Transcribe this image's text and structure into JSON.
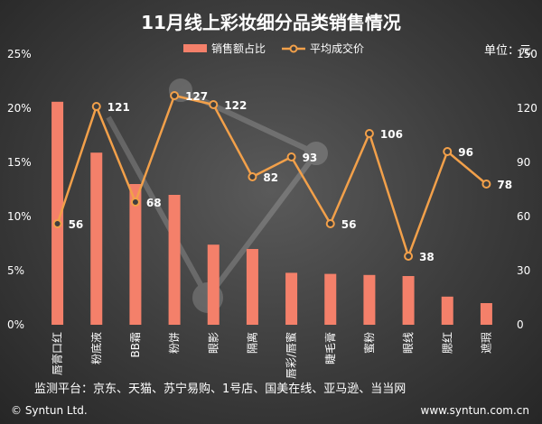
{
  "chart_data": {
    "type": "bar",
    "title": "11月线上彩妆细分品类销售情况",
    "unit_label": "单位：元",
    "categories": [
      "唇膏口红",
      "粉底液",
      "BB霜",
      "粉饼",
      "眼影",
      "隔离",
      "唇彩/唇蜜",
      "睫毛膏",
      "蜜粉",
      "眼线",
      "腮红",
      "遮瑕"
    ],
    "series": [
      {
        "name": "销售额占比",
        "kind": "bar",
        "axis": "left",
        "values": [
          20.6,
          15.9,
          13.0,
          12.0,
          7.4,
          7.0,
          4.8,
          4.7,
          4.6,
          4.5,
          2.6,
          2.0
        ]
      },
      {
        "name": "平均成交价",
        "kind": "line",
        "axis": "right",
        "values": [
          56,
          121,
          68,
          127,
          122,
          82,
          93,
          56,
          106,
          38,
          96,
          78
        ]
      }
    ],
    "left_axis": {
      "ylim": [
        0,
        25
      ],
      "ticks": [
        "0%",
        "5%",
        "10%",
        "15%",
        "20%",
        "25%"
      ],
      "tick_values": [
        0,
        5,
        10,
        15,
        20,
        25
      ]
    },
    "right_axis": {
      "ylim": [
        0,
        150
      ],
      "ticks": [
        "0",
        "30",
        "60",
        "90",
        "120",
        "150"
      ],
      "tick_values": [
        0,
        30,
        60,
        90,
        120,
        150
      ]
    },
    "colors": {
      "bar": "#f4806a",
      "line": "#f2a04a",
      "marker_fill": "#3f3f3f"
    },
    "legend_position": "top-center"
  },
  "note": "监测平台：京东、天猫、苏宁易购、1号店、国美在线、亚马逊、当当网",
  "footer": {
    "left": "© Syntun Ltd.",
    "right": "www.syntun.com.cn"
  }
}
